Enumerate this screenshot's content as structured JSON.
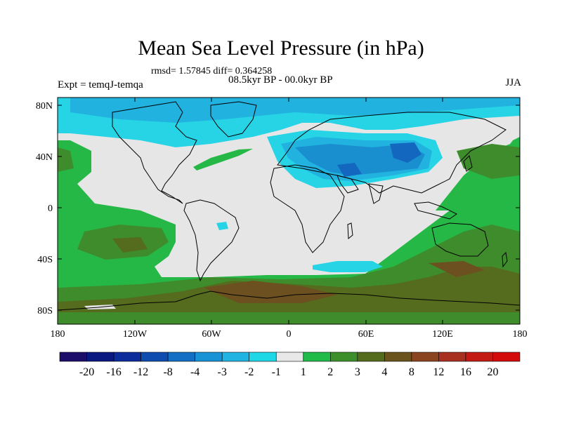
{
  "title": "Mean Sea Level Pressure (in hPa)",
  "stats": "rmsd= 1.57845 diff= 0.364258",
  "period": "08.5kyr BP - 00.0kyr BP",
  "experiment": "Expt = temqJ-temqa",
  "season": "JJA",
  "lat_ticks": [
    "80N",
    "40N",
    "0",
    "40S",
    "80S"
  ],
  "lon_ticks": [
    "180",
    "120W",
    "60W",
    "0",
    "60E",
    "120E",
    "180"
  ],
  "colorbar": {
    "labels": [
      "-20",
      "-16",
      "-12",
      "-8",
      "-4",
      "-3",
      "-2",
      "-1",
      "1",
      "2",
      "3",
      "4",
      "8",
      "12",
      "16",
      "20"
    ],
    "colors": [
      "#1c0d6b",
      "#0a1882",
      "#0c2c9c",
      "#0e4cb0",
      "#136fc4",
      "#1a93d6",
      "#21b3e2",
      "#1fd8e6",
      "#e8e8e8",
      "#21bb4a",
      "#3d8f2b",
      "#546b1e",
      "#6b531d",
      "#8a4420",
      "#a8301e",
      "#c41a14",
      "#d40b0b"
    ]
  },
  "legend_colors": {
    "neutral": "#e6e6e6",
    "cyan": "#26d4e6",
    "light_blue": "#22b2e0",
    "mid_blue": "#1a8fd0",
    "deep_blue": "#1367bf",
    "green": "#26b847",
    "mid_green": "#3f8c2c",
    "olive": "#556b1d",
    "brown": "#6d5020",
    "land_outline": "#000000"
  }
}
